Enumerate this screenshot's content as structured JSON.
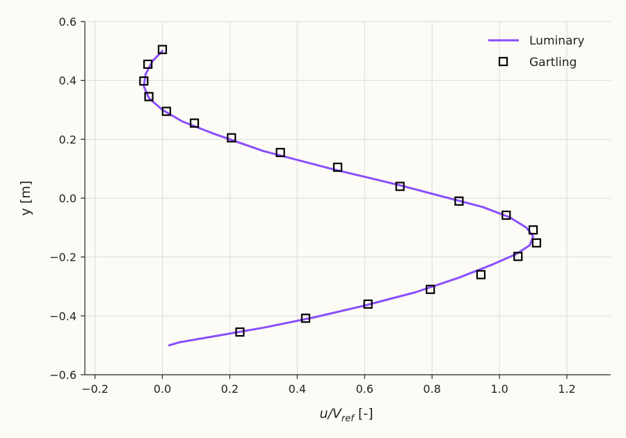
{
  "chart_data": {
    "type": "line",
    "xlabel": {
      "main": "u/V",
      "sub": "ref",
      "suffix": " [-]"
    },
    "ylabel": "y [m]",
    "xlim": [
      -0.23,
      1.33
    ],
    "ylim": [
      -0.6,
      0.6
    ],
    "xticks": [
      -0.2,
      0.0,
      0.2,
      0.4,
      0.6,
      0.8,
      1.0,
      1.2
    ],
    "xtick_labels": [
      "−0.2",
      "0.0",
      "0.2",
      "0.4",
      "0.6",
      "0.8",
      "1.0",
      "1.2"
    ],
    "yticks": [
      -0.6,
      -0.4,
      -0.2,
      0.0,
      0.2,
      0.4,
      0.6
    ],
    "ytick_labels": [
      "−0.6",
      "−0.4",
      "−0.2",
      "0.0",
      "0.2",
      "0.4",
      "0.6"
    ],
    "grid": true,
    "legend_position": "top-right",
    "series": [
      {
        "name": "Luminary",
        "kind": "line",
        "color": "#8a4fff",
        "x": [
          0.02,
          0.05,
          0.15,
          0.3,
          0.45,
          0.6,
          0.75,
          0.88,
          0.98,
          1.05,
          1.09,
          1.1,
          1.08,
          1.03,
          0.95,
          0.85,
          0.7,
          0.5,
          0.3,
          0.15,
          0.06,
          0.0,
          -0.04,
          -0.055,
          -0.05,
          -0.03,
          0.0
        ],
        "y": [
          -0.5,
          -0.49,
          -0.47,
          -0.44,
          -0.405,
          -0.365,
          -0.32,
          -0.27,
          -0.225,
          -0.19,
          -0.16,
          -0.13,
          -0.1,
          -0.065,
          -0.03,
          0.0,
          0.045,
          0.1,
          0.16,
          0.22,
          0.26,
          0.3,
          0.34,
          0.38,
          0.42,
          0.465,
          0.5
        ]
      },
      {
        "name": "Gartling",
        "kind": "markers",
        "marker": "square",
        "color": "#000000",
        "x": [
          0.23,
          0.425,
          0.61,
          0.795,
          0.945,
          1.055,
          1.11,
          1.1,
          1.02,
          0.88,
          0.705,
          0.52,
          0.35,
          0.205,
          0.095,
          0.012,
          -0.04,
          -0.055,
          -0.043,
          0.0
        ],
        "y": [
          -0.455,
          -0.408,
          -0.36,
          -0.31,
          -0.26,
          -0.198,
          -0.152,
          -0.108,
          -0.058,
          -0.01,
          0.04,
          0.105,
          0.155,
          0.205,
          0.255,
          0.295,
          0.345,
          0.398,
          0.455,
          0.505
        ]
      }
    ]
  }
}
